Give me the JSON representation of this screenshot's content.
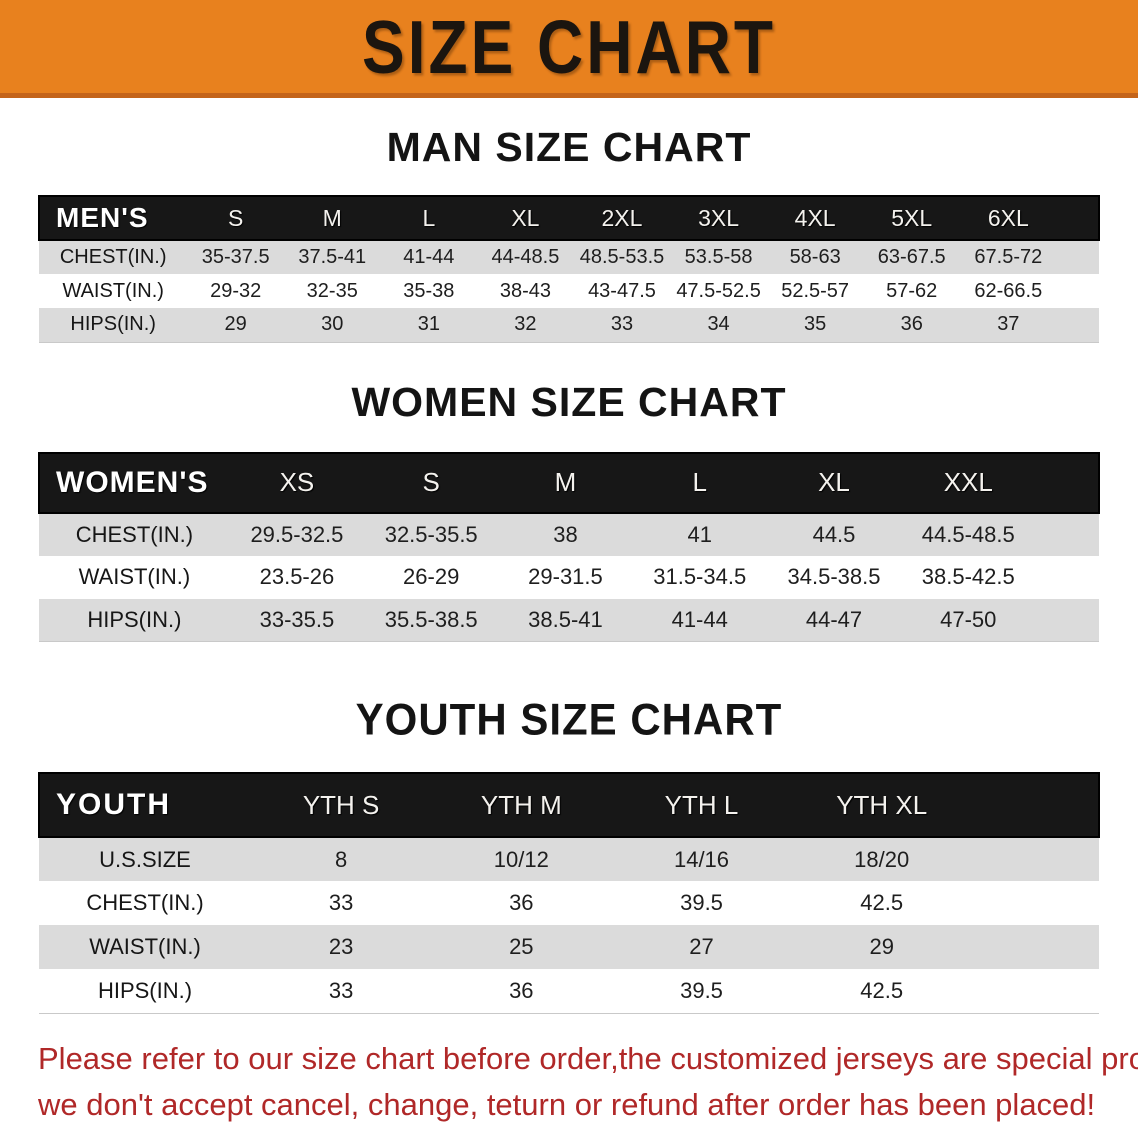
{
  "banner": {
    "title": "SIZE CHART",
    "bg_color": "#E8811E",
    "text_color": "#1b150f"
  },
  "sections": [
    {
      "heading": "MAN SIZE CHART",
      "corner_label": "MEN'S",
      "columns": [
        "S",
        "M",
        "L",
        "XL",
        "2XL",
        "3XL",
        "4XL",
        "5XL",
        "6XL"
      ],
      "rows": [
        {
          "label": "CHEST(IN.)",
          "values": [
            "35-37.5",
            "37.5-41",
            "41-44",
            "44-48.5",
            "48.5-53.5",
            "53.5-58",
            "58-63",
            "63-67.5",
            "67.5-72"
          ]
        },
        {
          "label": "WAIST(IN.)",
          "values": [
            "29-32",
            "32-35",
            "35-38",
            "38-43",
            "43-47.5",
            "47.5-52.5",
            "52.5-57",
            "57-62",
            "62-66.5"
          ]
        },
        {
          "label": "HIPS(IN.)",
          "values": [
            "29",
            "30",
            "31",
            "32",
            "33",
            "34",
            "35",
            "36",
            "37"
          ]
        }
      ]
    },
    {
      "heading": "WOMEN SIZE CHART",
      "corner_label": "WOMEN'S",
      "columns": [
        "XS",
        "S",
        "M",
        "L",
        "XL",
        "XXL"
      ],
      "rows": [
        {
          "label": "CHEST(IN.)",
          "values": [
            "29.5-32.5",
            "32.5-35.5",
            "38",
            "41",
            "44.5",
            "44.5-48.5"
          ]
        },
        {
          "label": "WAIST(IN.)",
          "values": [
            "23.5-26",
            "26-29",
            "29-31.5",
            "31.5-34.5",
            "34.5-38.5",
            "38.5-42.5"
          ]
        },
        {
          "label": "HIPS(IN.)",
          "values": [
            "33-35.5",
            "35.5-38.5",
            "38.5-41",
            "41-44",
            "44-47",
            "47-50"
          ]
        }
      ]
    },
    {
      "heading": "YOUTH SIZE CHART",
      "corner_label": "YOUTH",
      "columns": [
        "YTH S",
        "YTH M",
        "YTH L",
        "YTH XL"
      ],
      "rows": [
        {
          "label": "U.S.SIZE",
          "values": [
            "8",
            "10/12",
            "14/16",
            "18/20"
          ]
        },
        {
          "label": "CHEST(IN.)",
          "values": [
            "33",
            "36",
            "39.5",
            "42.5"
          ]
        },
        {
          "label": "WAIST(IN.)",
          "values": [
            "23",
            "25",
            "27",
            "29"
          ]
        },
        {
          "label": "HIPS(IN.)",
          "values": [
            "33",
            "36",
            "39.5",
            "42.5"
          ]
        }
      ]
    }
  ],
  "disclaimer": {
    "line1": "Please refer to our size chart before order,the customized jerseys are special products,",
    "line2": "we don't accept cancel, change, teturn or refund after order has been placed!",
    "color": "#B02828"
  }
}
